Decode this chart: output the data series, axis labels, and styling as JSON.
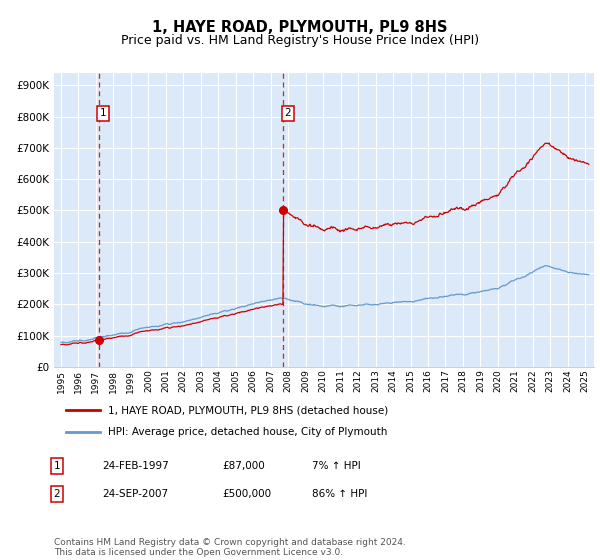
{
  "title": "1, HAYE ROAD, PLYMOUTH, PL9 8HS",
  "subtitle": "Price paid vs. HM Land Registry's House Price Index (HPI)",
  "title_fontsize": 10.5,
  "subtitle_fontsize": 9,
  "ylabel_ticks": [
    "£0",
    "£100K",
    "£200K",
    "£300K",
    "£400K",
    "£500K",
    "£600K",
    "£700K",
    "£800K",
    "£900K"
  ],
  "ytick_values": [
    0,
    100000,
    200000,
    300000,
    400000,
    500000,
    600000,
    700000,
    800000,
    900000
  ],
  "ylim": [
    0,
    940000
  ],
  "xlim_start": 1994.6,
  "xlim_end": 2025.5,
  "background_color": "#dce9f8",
  "grid_color": "#ffffff",
  "red_line_color": "#cc0000",
  "blue_line_color": "#6699cc",
  "marker_color": "#cc0000",
  "vline_color": "#cc0000",
  "purchase1_x": 1997.15,
  "purchase1_y": 87000,
  "purchase2_x": 2007.73,
  "purchase2_y": 500000,
  "legend_label_red": "1, HAYE ROAD, PLYMOUTH, PL9 8HS (detached house)",
  "legend_label_blue": "HPI: Average price, detached house, City of Plymouth",
  "annotation1_num": "1",
  "annotation2_num": "2",
  "table_rows": [
    [
      "1",
      "24-FEB-1997",
      "£87,000",
      "7% ↑ HPI"
    ],
    [
      "2",
      "24-SEP-2007",
      "£500,000",
      "86% ↑ HPI"
    ]
  ],
  "footnote": "Contains HM Land Registry data © Crown copyright and database right 2024.\nThis data is licensed under the Open Government Licence v3.0.",
  "footnote_fontsize": 6.5
}
